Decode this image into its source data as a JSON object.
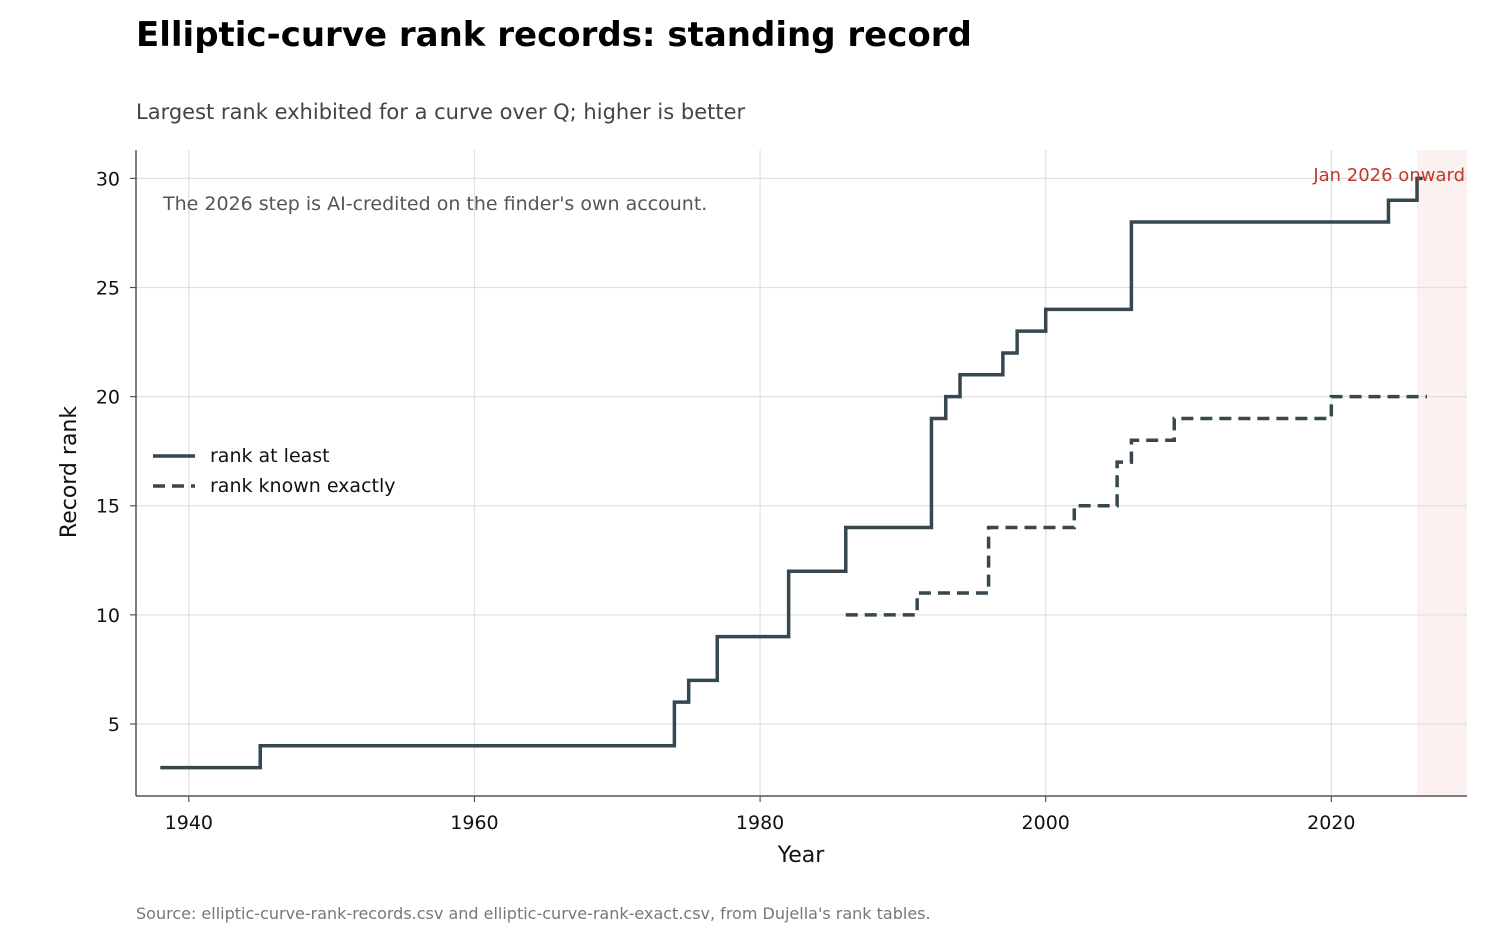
{
  "chart_data": {
    "type": "line",
    "title": "Elliptic-curve rank records: standing record",
    "subtitle": "Largest rank exhibited for a curve over Q; higher is better",
    "xlabel": "Year",
    "ylabel": "Record rank",
    "xlim": [
      1936.3,
      2029.5
    ],
    "ylim": [
      1.7,
      31.3
    ],
    "xticks": [
      1940,
      1960,
      1980,
      2000,
      2020
    ],
    "yticks": [
      5,
      10,
      15,
      20,
      25,
      30
    ],
    "grid": true,
    "legend_position": "center-left",
    "step": "post",
    "series": [
      {
        "name": "rank at least",
        "style": "solid",
        "color": "#37474f",
        "x": [
          1938,
          1945,
          1974,
          1975,
          1977,
          1982,
          1986,
          1992,
          1993,
          1994,
          1997,
          1998,
          2000,
          2006,
          2024,
          2026,
          2026.4
        ],
        "y": [
          3,
          4,
          6,
          7,
          9,
          12,
          14,
          19,
          20,
          21,
          22,
          23,
          24,
          28,
          29,
          30,
          30
        ]
      },
      {
        "name": "rank known exactly",
        "style": "dashed",
        "color": "#37474f",
        "x": [
          1986,
          1991,
          1996,
          2002,
          2005,
          2006,
          2009,
          2020,
          2026.7
        ],
        "y": [
          10,
          11,
          14,
          15,
          17,
          18,
          19,
          20,
          20
        ]
      }
    ],
    "shaded_region": {
      "x_start": 2026,
      "x_end": 2029.5,
      "label": "Jan 2026 onward",
      "color": "#c0392b"
    },
    "annotation": "The 2026 step is AI-credited on the finder's own account.",
    "source": "Source: elliptic-curve-rank-records.csv and elliptic-curve-rank-exact.csv, from Dujella's rank tables."
  }
}
